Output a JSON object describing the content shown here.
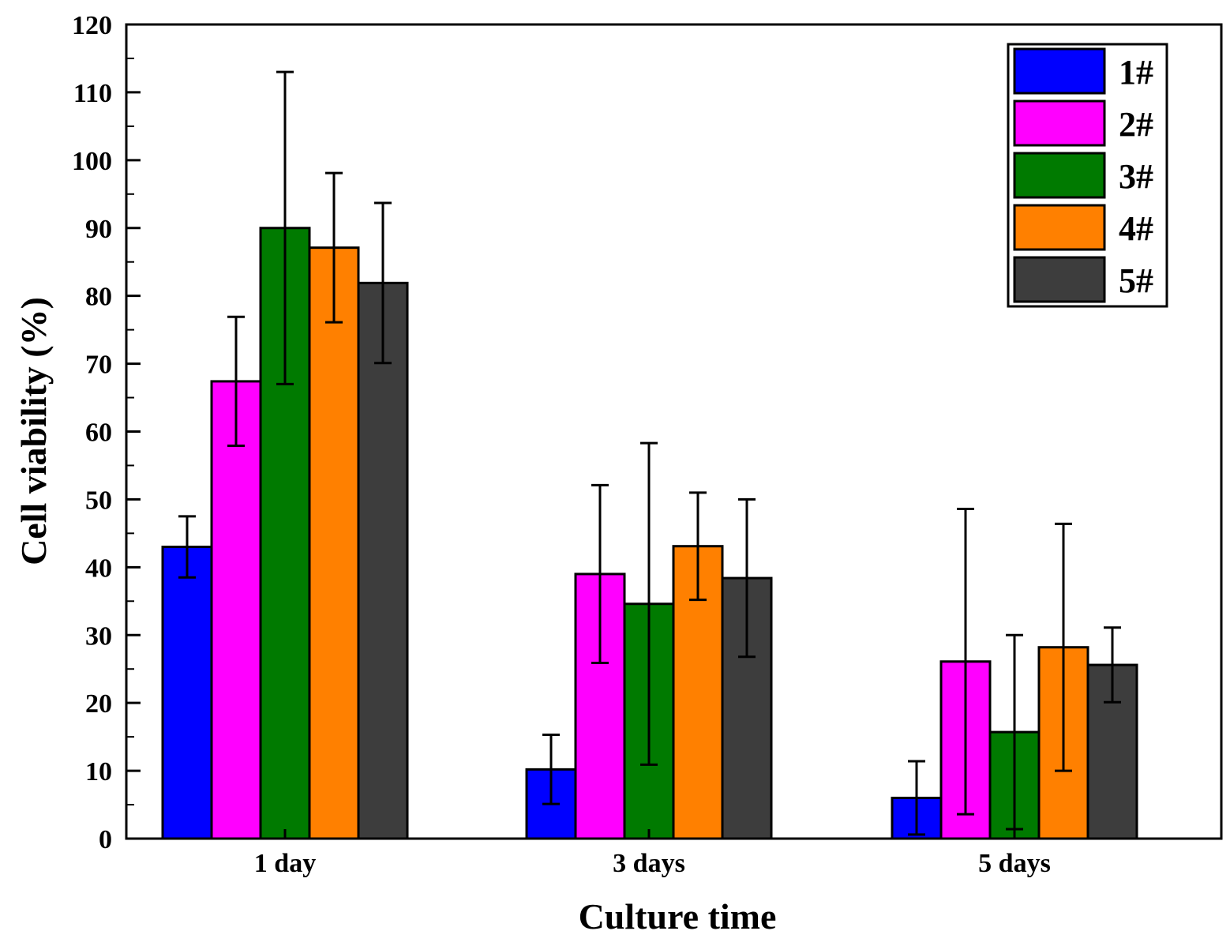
{
  "chart_data": {
    "type": "bar",
    "title": "",
    "xlabel": "Culture time",
    "ylabel": "Cell viability (%)",
    "ylim": [
      0,
      120
    ],
    "yticks": [
      0,
      10,
      20,
      30,
      40,
      50,
      60,
      70,
      80,
      90,
      100,
      110,
      120
    ],
    "categories": [
      "1 day",
      "3 days",
      "5 days"
    ],
    "legend_position": "top-right",
    "series": [
      {
        "name": "1#",
        "color": "#0000ff",
        "values": [
          43,
          10.2,
          6
        ],
        "errors": [
          4.5,
          5.1,
          5.4
        ]
      },
      {
        "name": "2#",
        "color": "#ff00ff",
        "values": [
          67.4,
          39,
          26.1
        ],
        "errors": [
          9.5,
          13.1,
          22.5
        ]
      },
      {
        "name": "3#",
        "color": "#007a00",
        "values": [
          90,
          34.6,
          15.7
        ],
        "errors": [
          23,
          23.7,
          14.3
        ]
      },
      {
        "name": "4#",
        "color": "#ff8000",
        "values": [
          87.1,
          43.1,
          28.2
        ],
        "errors": [
          11,
          7.9,
          18.2
        ]
      },
      {
        "name": "5#",
        "color": "#3d3d3d",
        "values": [
          81.9,
          38.4,
          25.6
        ],
        "errors": [
          11.8,
          11.6,
          5.5
        ]
      }
    ]
  }
}
